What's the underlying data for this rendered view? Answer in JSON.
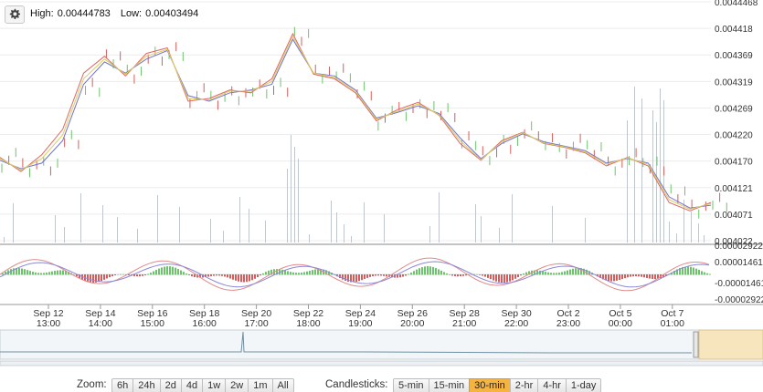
{
  "header": {
    "settings_icon": "gear-icon",
    "high_label": "High:",
    "high_value": "0.00444783",
    "low_label": "Low:",
    "low_value": "0.00403494"
  },
  "chart_data": {
    "type": "line",
    "price_axis": {
      "ticks": [
        "0.0044468",
        "0.004418",
        "0.004369",
        "0.004319",
        "0.004269",
        "0.004220",
        "0.004170",
        "0.004121",
        "0.004071",
        "0.004022"
      ],
      "ylim": [
        0.004022,
        0.0044468
      ]
    },
    "macd_axis": {
      "ticks": [
        "0.00002922",
        "0.00001461",
        "-0.00001461",
        "-0.00002922"
      ]
    },
    "x_ticks": [
      {
        "date": "Sep 12",
        "time": "13:00"
      },
      {
        "date": "Sep 14",
        "time": "14:00"
      },
      {
        "date": "Sep 16",
        "time": "15:00"
      },
      {
        "date": "Sep 18",
        "time": "16:00"
      },
      {
        "date": "Sep 20",
        "time": "17:00"
      },
      {
        "date": "Sep 22",
        "time": "18:00"
      },
      {
        "date": "Sep 24",
        "time": "19:00"
      },
      {
        "date": "Sep 26",
        "time": "20:00"
      },
      {
        "date": "Sep 28",
        "time": "21:00"
      },
      {
        "date": "Sep 30",
        "time": "22:00"
      },
      {
        "date": "Oct 2",
        "time": "23:00"
      },
      {
        "date": "Oct 5",
        "time": "00:00"
      },
      {
        "date": "Oct 7",
        "time": "01:00"
      }
    ],
    "price_series": [
      {
        "color": "#7070d8",
        "values": [
          0.004165,
          0.00415,
          0.00416,
          0.0042,
          0.0043,
          0.00434,
          0.00432,
          0.004345,
          0.00436,
          0.00428,
          0.00427,
          0.004285,
          0.00429,
          0.0043,
          0.00438,
          0.00432,
          0.004315,
          0.00429,
          0.00424,
          0.00425,
          0.004262,
          0.004248,
          0.004205,
          0.004168,
          0.004195,
          0.004212,
          0.004198,
          0.00419,
          0.004182,
          0.00416,
          0.004168,
          0.00416,
          0.0041,
          0.00408,
          0.004085
        ]
      },
      {
        "color": "#e06666",
        "values": [
          0.00417,
          0.004145,
          0.004175,
          0.00422,
          0.00432,
          0.00435,
          0.004315,
          0.004355,
          0.004365,
          0.00427,
          0.004275,
          0.00429,
          0.004285,
          0.00431,
          0.00439,
          0.004318,
          0.00431,
          0.004285,
          0.004235,
          0.004255,
          0.004268,
          0.004245,
          0.004195,
          0.004165,
          0.0042,
          0.004215,
          0.004195,
          0.004188,
          0.004178,
          0.004155,
          0.00417,
          0.004155,
          0.00409,
          0.004075,
          0.00409
        ]
      },
      {
        "color": "#d8cf5a",
        "values": [
          0.004168,
          0.004148,
          0.004168,
          0.00421,
          0.00431,
          0.004345,
          0.004318,
          0.00435,
          0.004362,
          0.004275,
          0.004272,
          0.004288,
          0.004288,
          0.004305,
          0.004385,
          0.00432,
          0.004312,
          0.004288,
          0.004238,
          0.004252,
          0.004265,
          0.004246,
          0.0042,
          0.004166,
          0.004198,
          0.004214,
          0.004196,
          0.004189,
          0.00418,
          0.004158,
          0.004169,
          0.004158,
          0.004095,
          0.004078,
          0.004088
        ]
      }
    ],
    "legend": "none",
    "grid": true
  },
  "controls": {
    "zoom_label": "Zoom:",
    "zoom_options": [
      "6h",
      "24h",
      "2d",
      "4d",
      "1w",
      "2w",
      "1m",
      "All"
    ],
    "candlesticks_label": "Candlesticks:",
    "candle_options": [
      "5-min",
      "15-min",
      "30-min",
      "2-hr",
      "4-hr",
      "1-day"
    ],
    "candle_active": "30-min"
  },
  "colors": {
    "up_candle": "#6cc36c",
    "down_candle": "#d65c5c",
    "active_button": "#f5b441",
    "volume": "#bfc7cd",
    "navigator_selection": "#f7e6bd"
  }
}
